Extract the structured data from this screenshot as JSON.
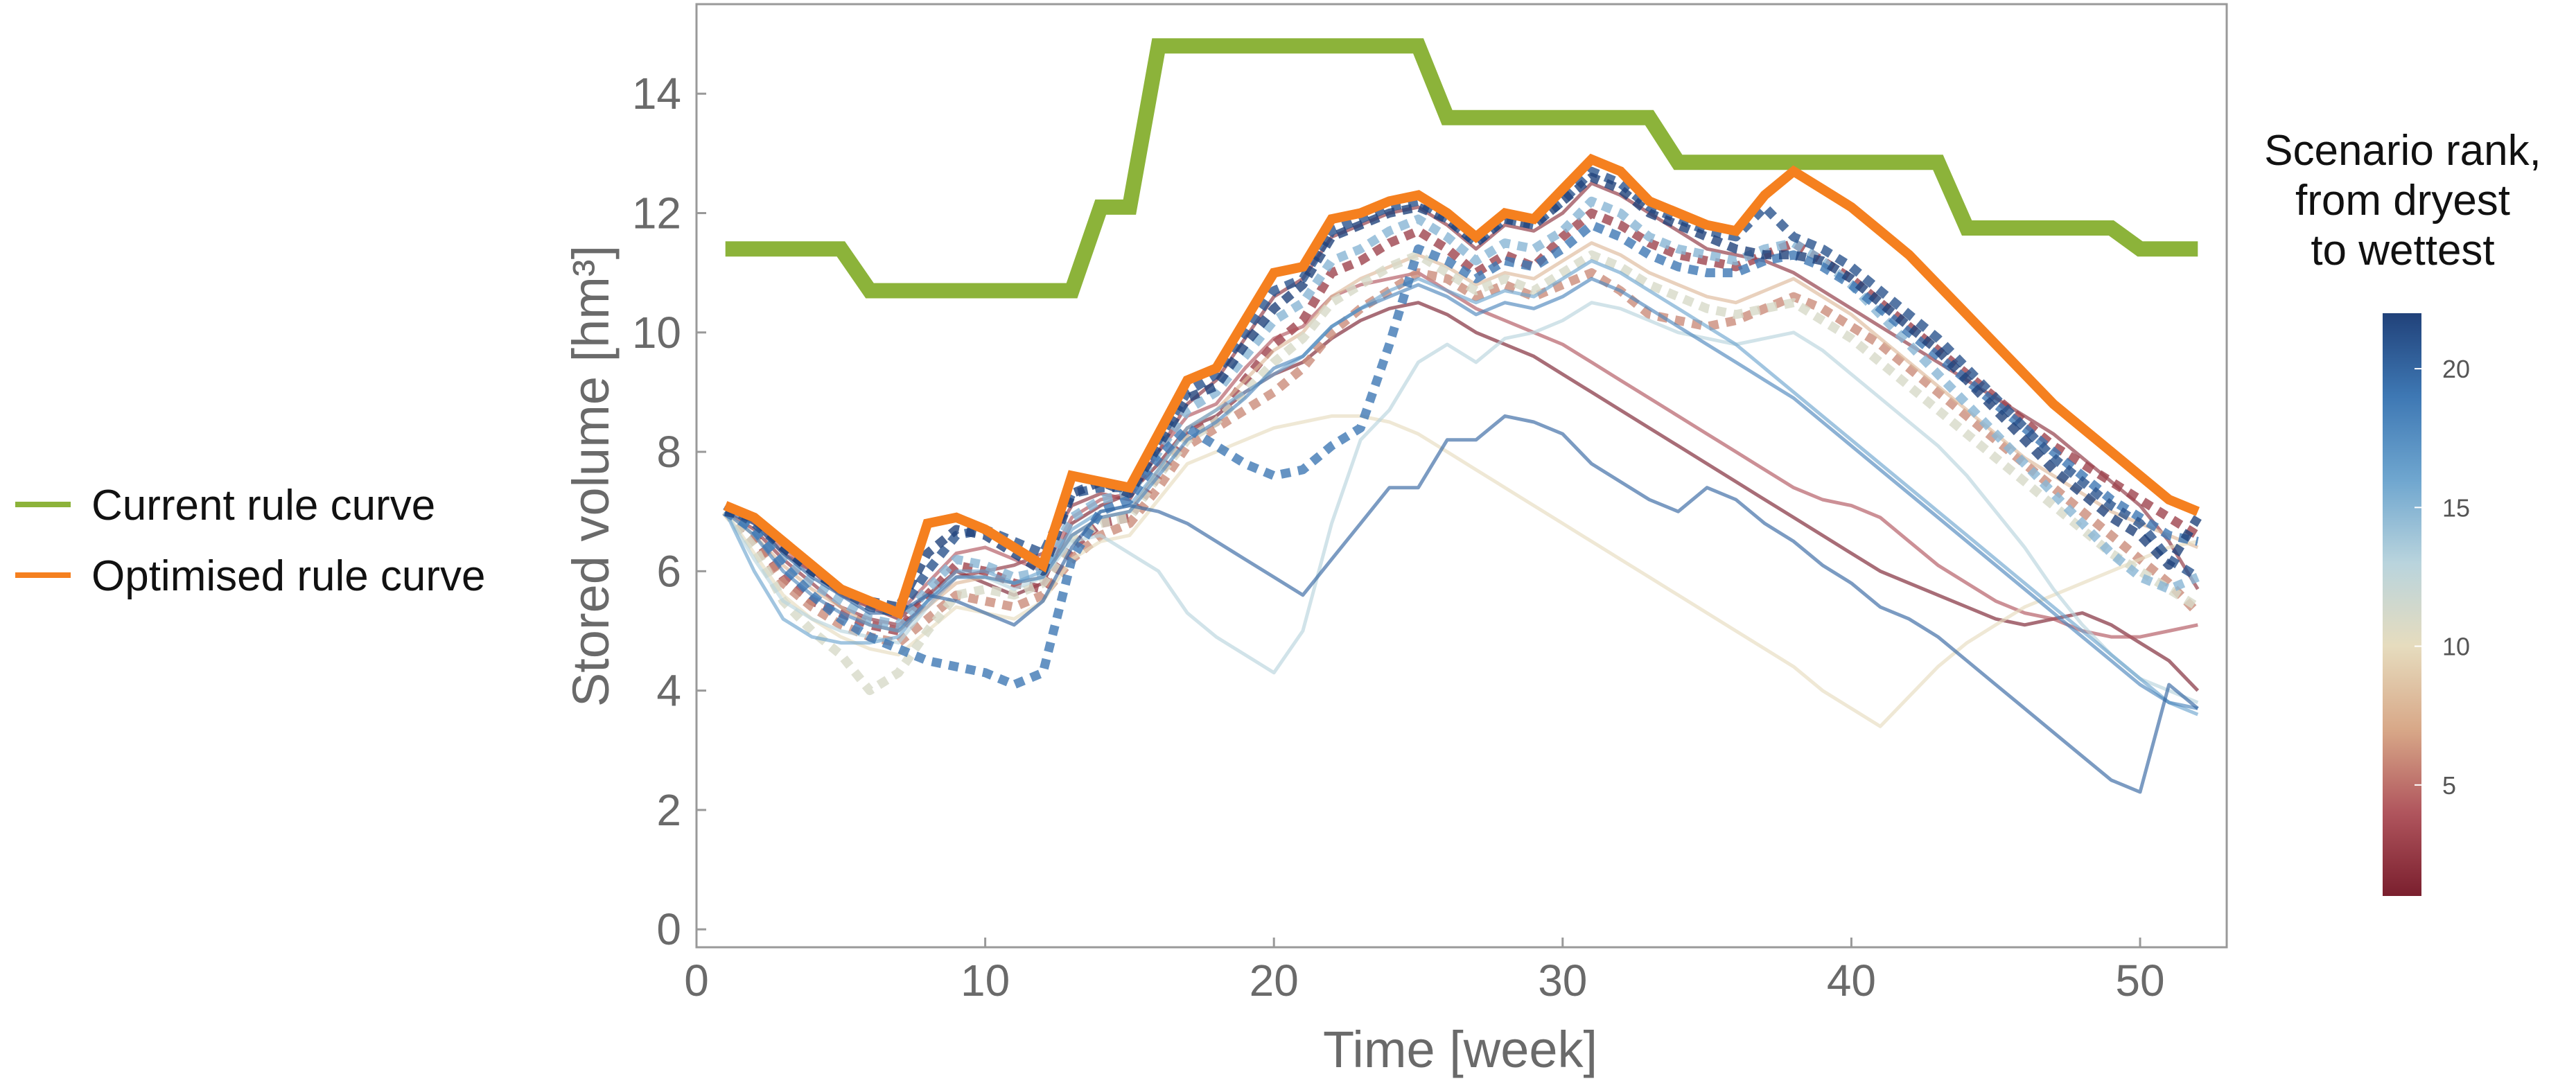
{
  "chart_data": {
    "type": "line",
    "xlabel": "Time [week]",
    "ylabel": "Stored volume [hm³]",
    "xlim": [
      0,
      53
    ],
    "ylim": [
      -0.3,
      15.5
    ],
    "x_ticks": [
      0,
      10,
      20,
      30,
      40,
      50
    ],
    "y_ticks": [
      0,
      2,
      4,
      6,
      8,
      10,
      12,
      14
    ],
    "grid": false,
    "legend": {
      "position": "left",
      "entries": [
        {
          "label": "Current rule curve",
          "color": "#8cb33a"
        },
        {
          "label": "Optimised rule curve",
          "color": "#f5801f"
        }
      ]
    },
    "colorbar": {
      "title_lines": [
        "Scenario rank,",
        "from dryest",
        "to wettest"
      ],
      "range": [
        1,
        22
      ],
      "ticks": [
        5,
        10,
        15,
        20
      ],
      "colors": [
        "#7a1f2e",
        "#b0555d",
        "#d8a888",
        "#e6dcbe",
        "#b9d4dd",
        "#6fa6cf",
        "#3e78b4",
        "#21427a"
      ]
    },
    "series": [
      {
        "name": "Current rule curve",
        "color": "#8cb33a",
        "x": [
          1,
          5,
          6,
          7,
          13,
          14,
          15,
          16,
          25,
          26,
          33,
          34,
          43,
          44,
          49,
          50,
          52
        ],
        "y": [
          11.4,
          11.4,
          10.7,
          10.7,
          10.7,
          12.1,
          12.1,
          14.8,
          14.8,
          13.6,
          13.6,
          12.85,
          12.85,
          11.75,
          11.75,
          11.4,
          11.4
        ]
      },
      {
        "name": "Optimised rule curve",
        "color": "#f5801f",
        "x": [
          1,
          2,
          3,
          4,
          5,
          6,
          7,
          8,
          9,
          10,
          11,
          12,
          13,
          14,
          15,
          16,
          17,
          18,
          19,
          20,
          21,
          22,
          23,
          24,
          25,
          26,
          27,
          28,
          29,
          30,
          31,
          32,
          33,
          34,
          35,
          36,
          37,
          38,
          39,
          40,
          41,
          42,
          43,
          44,
          45,
          46,
          47,
          48,
          49,
          50,
          51,
          52
        ],
        "y": [
          7.1,
          6.9,
          6.5,
          6.1,
          5.7,
          5.5,
          5.3,
          6.8,
          6.9,
          6.7,
          6.4,
          6.1,
          7.6,
          7.5,
          7.4,
          8.3,
          9.2,
          9.4,
          10.2,
          11.0,
          11.1,
          11.9,
          12.0,
          12.2,
          12.3,
          12.0,
          11.6,
          12.0,
          11.9,
          12.4,
          12.9,
          12.7,
          12.2,
          12.0,
          11.8,
          11.7,
          12.3,
          12.7,
          12.4,
          12.1,
          11.7,
          11.3,
          10.8,
          10.3,
          9.8,
          9.3,
          8.8,
          8.4,
          8.0,
          7.6,
          7.2,
          7.0
        ]
      }
    ],
    "scenarios": [
      {
        "rank": 1,
        "style": "solid",
        "y": [
          7.1,
          6.8,
          6.3,
          6.0,
          5.6,
          5.4,
          5.2,
          5.6,
          6.0,
          5.8,
          5.6,
          5.8,
          6.8,
          7.1,
          7.3,
          7.8,
          8.4,
          8.6,
          9.0,
          9.3,
          9.5,
          9.9,
          10.2,
          10.4,
          10.5,
          10.3,
          10.0,
          9.8,
          9.6,
          9.3,
          9.0,
          8.7,
          8.4,
          8.1,
          7.8,
          7.5,
          7.2,
          6.9,
          6.6,
          6.3,
          6.0,
          5.8,
          5.6,
          5.4,
          5.2,
          5.1,
          5.2,
          5.3,
          5.1,
          4.8,
          4.5,
          4.0
        ]
      },
      {
        "rank": 2,
        "style": "solid",
        "y": [
          7.0,
          6.7,
          6.2,
          5.8,
          5.4,
          5.2,
          5.1,
          5.4,
          5.9,
          6.0,
          6.1,
          6.3,
          7.1,
          7.3,
          7.2,
          8.0,
          8.8,
          9.2,
          9.9,
          10.6,
          10.9,
          11.6,
          11.8,
          12.0,
          12.1,
          11.8,
          11.4,
          11.8,
          11.7,
          12.0,
          12.5,
          12.3,
          12.0,
          11.7,
          11.4,
          11.3,
          11.2,
          11.0,
          10.7,
          10.4,
          10.1,
          9.8,
          9.5,
          9.2,
          8.9,
          8.6,
          8.3,
          7.9,
          7.5,
          7.1,
          6.5,
          5.7
        ]
      },
      {
        "rank": 3,
        "style": "dotted",
        "y": [
          7.0,
          6.6,
          5.9,
          5.5,
          5.3,
          5.1,
          5.0,
          5.6,
          6.1,
          6.0,
          5.8,
          5.7,
          6.4,
          6.8,
          6.9,
          7.6,
          8.3,
          8.5,
          9.2,
          9.8,
          10.2,
          11.0,
          11.2,
          11.5,
          11.7,
          11.4,
          11.0,
          11.3,
          11.1,
          11.6,
          12.0,
          11.8,
          11.5,
          11.3,
          11.2,
          11.1,
          11.3,
          11.5,
          11.2,
          10.9,
          10.5,
          10.1,
          9.7,
          9.3,
          8.9,
          8.5,
          8.1,
          7.8,
          7.5,
          7.2,
          6.9,
          6.6
        ]
      },
      {
        "rank": 4,
        "style": "solid",
        "y": [
          7.1,
          6.8,
          6.4,
          6.0,
          5.7,
          5.4,
          5.3,
          5.8,
          6.3,
          6.4,
          6.2,
          6.0,
          6.9,
          7.2,
          7.3,
          8.0,
          8.6,
          8.8,
          9.4,
          9.9,
          10.1,
          10.6,
          10.8,
          10.9,
          11.0,
          10.7,
          10.4,
          10.2,
          10.0,
          9.8,
          9.5,
          9.2,
          8.9,
          8.6,
          8.3,
          8.0,
          7.7,
          7.4,
          7.2,
          7.1,
          6.9,
          6.5,
          6.1,
          5.8,
          5.5,
          5.3,
          5.2,
          5.0,
          4.9,
          4.9,
          5.0,
          5.1
        ]
      },
      {
        "rank": 6,
        "style": "dotted",
        "y": [
          7.0,
          6.5,
          5.8,
          5.4,
          5.1,
          4.9,
          4.8,
          5.2,
          5.6,
          5.5,
          5.4,
          5.6,
          6.2,
          6.6,
          6.8,
          7.4,
          8.1,
          8.4,
          8.7,
          9.0,
          9.4,
          10.0,
          10.4,
          10.7,
          11.0,
          10.9,
          10.6,
          10.8,
          10.6,
          10.8,
          11.0,
          10.7,
          10.3,
          10.2,
          10.1,
          10.2,
          10.4,
          10.6,
          10.4,
          10.1,
          9.8,
          9.4,
          9.0,
          8.6,
          8.2,
          7.8,
          7.4,
          7.0,
          6.6,
          6.2,
          5.8,
          5.3
        ]
      },
      {
        "rank": 8,
        "style": "solid",
        "y": [
          7.0,
          6.6,
          6.1,
          5.7,
          5.4,
          5.1,
          5.0,
          5.4,
          5.8,
          5.9,
          5.8,
          5.9,
          6.6,
          6.9,
          7.0,
          7.7,
          8.4,
          8.7,
          9.2,
          9.7,
          10.0,
          10.6,
          10.9,
          11.1,
          11.3,
          11.1,
          10.8,
          11.0,
          10.9,
          11.2,
          11.5,
          11.3,
          11.0,
          10.8,
          10.6,
          10.5,
          10.7,
          10.9,
          10.6,
          10.3,
          9.9,
          9.5,
          9.1,
          8.7,
          8.3,
          7.9,
          7.6,
          7.3,
          7.0,
          6.8,
          6.6,
          6.4
        ]
      },
      {
        "rank": 10,
        "style": "solid",
        "y": [
          7.0,
          6.3,
          5.6,
          5.2,
          4.9,
          4.7,
          4.6,
          5.0,
          5.4,
          5.3,
          5.2,
          5.5,
          6.2,
          6.5,
          6.6,
          7.2,
          7.8,
          8.0,
          8.2,
          8.4,
          8.5,
          8.6,
          8.6,
          8.5,
          8.3,
          8.0,
          7.7,
          7.4,
          7.1,
          6.8,
          6.5,
          6.2,
          5.9,
          5.6,
          5.3,
          5.0,
          4.7,
          4.4,
          4.0,
          3.7,
          3.4,
          3.9,
          4.4,
          4.8,
          5.1,
          5.4,
          5.6,
          5.8,
          6.0,
          6.2,
          6.4,
          6.5
        ]
      },
      {
        "rank": 11,
        "style": "dotted",
        "y": [
          7.0,
          6.4,
          5.5,
          5.0,
          4.6,
          4.0,
          4.3,
          5.0,
          5.6,
          5.7,
          5.6,
          5.8,
          6.5,
          6.8,
          6.9,
          7.6,
          8.2,
          8.5,
          9.0,
          9.5,
          9.9,
          10.5,
          10.8,
          11.1,
          11.3,
          11.0,
          10.7,
          10.9,
          10.7,
          11.0,
          11.3,
          11.1,
          10.8,
          10.6,
          10.4,
          10.3,
          10.4,
          10.5,
          10.2,
          9.9,
          9.5,
          9.1,
          8.7,
          8.3,
          7.9,
          7.5,
          7.1,
          6.7,
          6.3,
          6.0,
          5.7,
          5.4
        ]
      },
      {
        "rank": 13,
        "style": "solid",
        "y": [
          7.0,
          6.2,
          5.5,
          5.2,
          5.0,
          4.9,
          4.8,
          5.4,
          5.9,
          5.9,
          5.7,
          5.9,
          6.5,
          6.6,
          6.3,
          6.0,
          5.3,
          4.9,
          4.6,
          4.3,
          5.0,
          6.8,
          8.2,
          8.7,
          9.5,
          9.8,
          9.5,
          9.9,
          10.0,
          10.2,
          10.5,
          10.4,
          10.2,
          10.0,
          9.9,
          9.8,
          9.9,
          10.0,
          9.7,
          9.3,
          8.9,
          8.5,
          8.1,
          7.6,
          7.0,
          6.4,
          5.7,
          5.1,
          4.6,
          4.2,
          4.0,
          3.8
        ]
      },
      {
        "rank": 15,
        "style": "dotted",
        "y": [
          7.0,
          6.7,
          6.2,
          5.8,
          5.5,
          5.2,
          5.1,
          5.7,
          6.2,
          6.1,
          5.9,
          6.0,
          6.9,
          7.2,
          7.3,
          8.0,
          8.7,
          9.0,
          9.6,
          10.2,
          10.5,
          11.2,
          11.4,
          11.7,
          11.9,
          11.6,
          11.2,
          11.5,
          11.4,
          11.7,
          12.2,
          12.0,
          11.6,
          11.4,
          11.3,
          11.2,
          11.4,
          11.5,
          11.2,
          10.8,
          10.3,
          9.8,
          9.3,
          8.8,
          8.3,
          7.8,
          7.3,
          6.8,
          6.3,
          5.9,
          5.7,
          5.9
        ]
      },
      {
        "rank": 16,
        "style": "solid",
        "y": [
          7.0,
          6.0,
          5.2,
          4.9,
          4.8,
          4.8,
          4.9,
          5.5,
          6.0,
          6.0,
          5.8,
          6.0,
          6.7,
          7.0,
          7.1,
          7.7,
          8.4,
          8.7,
          9.0,
          9.3,
          9.6,
          10.1,
          10.4,
          10.7,
          10.9,
          10.7,
          10.5,
          10.7,
          10.6,
          10.9,
          11.2,
          11.0,
          10.7,
          10.4,
          10.1,
          9.8,
          9.4,
          9.0,
          8.6,
          8.2,
          7.8,
          7.4,
          7.0,
          6.6,
          6.2,
          5.8,
          5.4,
          5.0,
          4.6,
          4.2,
          3.8,
          3.6
        ]
      },
      {
        "rank": 18,
        "style": "solid",
        "y": [
          7.0,
          6.6,
          6.0,
          5.6,
          5.3,
          5.1,
          5.0,
          5.5,
          5.9,
          5.9,
          5.8,
          5.9,
          6.6,
          6.9,
          7.0,
          7.6,
          8.2,
          8.5,
          8.9,
          9.4,
          9.6,
          10.1,
          10.4,
          10.6,
          10.8,
          10.6,
          10.3,
          10.5,
          10.4,
          10.6,
          10.9,
          10.7,
          10.4,
          10.1,
          9.8,
          9.5,
          9.2,
          8.9,
          8.5,
          8.1,
          7.7,
          7.3,
          6.9,
          6.5,
          6.1,
          5.7,
          5.3,
          4.9,
          4.5,
          4.1,
          3.8,
          3.7
        ]
      },
      {
        "rank": 19,
        "style": "dotted",
        "y": [
          7.0,
          6.7,
          6.1,
          5.6,
          5.2,
          4.9,
          4.7,
          4.5,
          4.4,
          4.3,
          4.1,
          4.3,
          6.2,
          7.0,
          7.2,
          7.9,
          8.4,
          8.1,
          7.8,
          7.6,
          7.7,
          8.1,
          8.4,
          9.8,
          11.4,
          11.2,
          10.9,
          11.2,
          11.1,
          11.4,
          11.8,
          11.6,
          11.3,
          11.1,
          11.0,
          11.0,
          11.2,
          11.3,
          11.1,
          10.8,
          10.4,
          10.0,
          9.6,
          9.2,
          8.8,
          8.4,
          8.0,
          7.6,
          7.2,
          6.9,
          6.6,
          6.5
        ]
      },
      {
        "rank": 20,
        "style": "solid",
        "y": [
          7.0,
          6.8,
          6.3,
          5.9,
          5.6,
          5.3,
          5.3,
          5.6,
          5.5,
          5.3,
          5.1,
          5.5,
          6.4,
          7.0,
          7.1,
          7.0,
          6.8,
          6.5,
          6.2,
          5.9,
          5.6,
          6.2,
          6.8,
          7.4,
          7.4,
          8.2,
          8.2,
          8.6,
          8.5,
          8.3,
          7.8,
          7.5,
          7.2,
          7.0,
          7.4,
          7.2,
          6.8,
          6.5,
          6.1,
          5.8,
          5.4,
          5.2,
          4.9,
          4.5,
          4.1,
          3.7,
          3.3,
          2.9,
          2.5,
          2.3,
          4.1,
          3.7
        ]
      },
      {
        "rank": 21,
        "style": "dotted",
        "y": [
          7.1,
          6.8,
          6.4,
          6.0,
          5.7,
          5.4,
          5.3,
          6.0,
          6.6,
          6.7,
          6.5,
          6.3,
          7.3,
          7.4,
          7.4,
          8.2,
          9.0,
          9.3,
          10.0,
          10.7,
          10.9,
          11.7,
          11.9,
          12.1,
          12.2,
          11.9,
          11.5,
          11.9,
          11.8,
          12.2,
          12.7,
          12.5,
          12.1,
          11.9,
          11.7,
          11.6,
          12.1,
          11.6,
          11.4,
          11.1,
          10.7,
          10.3,
          9.9,
          9.4,
          8.9,
          8.4,
          7.9,
          7.5,
          7.1,
          6.8,
          6.2,
          5.9
        ]
      },
      {
        "rank": 22,
        "style": "dotted",
        "y": [
          7.0,
          6.9,
          6.4,
          6.0,
          5.7,
          5.5,
          5.4,
          6.3,
          6.7,
          6.6,
          6.3,
          6.0,
          7.3,
          7.5,
          7.3,
          8.1,
          8.9,
          9.1,
          9.8,
          10.4,
          10.8,
          11.6,
          11.8,
          12.0,
          12.1,
          11.9,
          11.5,
          11.9,
          11.8,
          12.2,
          12.6,
          12.4,
          12.0,
          11.8,
          11.6,
          11.4,
          11.3,
          11.3,
          11.2,
          10.9,
          10.5,
          10.1,
          9.7,
          9.2,
          8.7,
          8.2,
          7.7,
          7.3,
          6.9,
          6.6,
          6.1,
          6.9
        ]
      }
    ]
  }
}
